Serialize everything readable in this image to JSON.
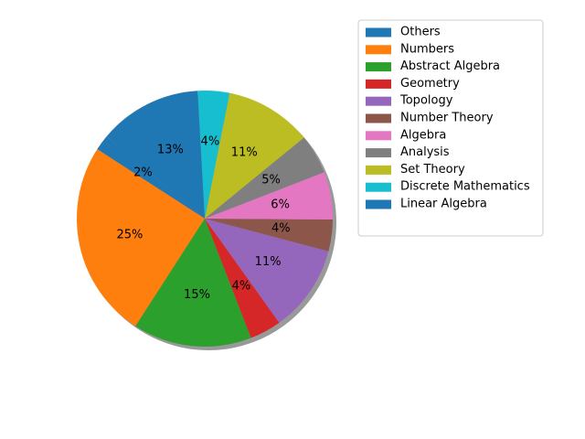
{
  "chart_data": {
    "type": "pie",
    "title": "",
    "start_angle_deg": 140,
    "counterclock": true,
    "shadow": true,
    "legend_position": "upper-right",
    "slices": [
      {
        "label": "Others",
        "value": 2,
        "pct_label": "2%",
        "color": "#1f77b4"
      },
      {
        "label": "Numbers",
        "value": 25,
        "pct_label": "25%",
        "color": "#ff7f0e"
      },
      {
        "label": "Abstract Algebra",
        "value": 15,
        "pct_label": "15%",
        "color": "#2ca02c"
      },
      {
        "label": "Geometry",
        "value": 4,
        "pct_label": "4%",
        "color": "#d62728"
      },
      {
        "label": "Topology",
        "value": 11,
        "pct_label": "11%",
        "color": "#9467bd"
      },
      {
        "label": "Number Theory",
        "value": 4,
        "pct_label": "4%",
        "color": "#8c564b"
      },
      {
        "label": "Algebra",
        "value": 6,
        "pct_label": "6%",
        "color": "#e377c2"
      },
      {
        "label": "Analysis",
        "value": 5,
        "pct_label": "5%",
        "color": "#7f7f7f"
      },
      {
        "label": "Set Theory",
        "value": 11,
        "pct_label": "11%",
        "color": "#bcbd22"
      },
      {
        "label": "Discrete Mathematics",
        "value": 4,
        "pct_label": "4%",
        "color": "#17becf"
      },
      {
        "label": "Linear Algebra",
        "value": 13,
        "pct_label": "13%",
        "color": "#1f77b4"
      }
    ]
  }
}
